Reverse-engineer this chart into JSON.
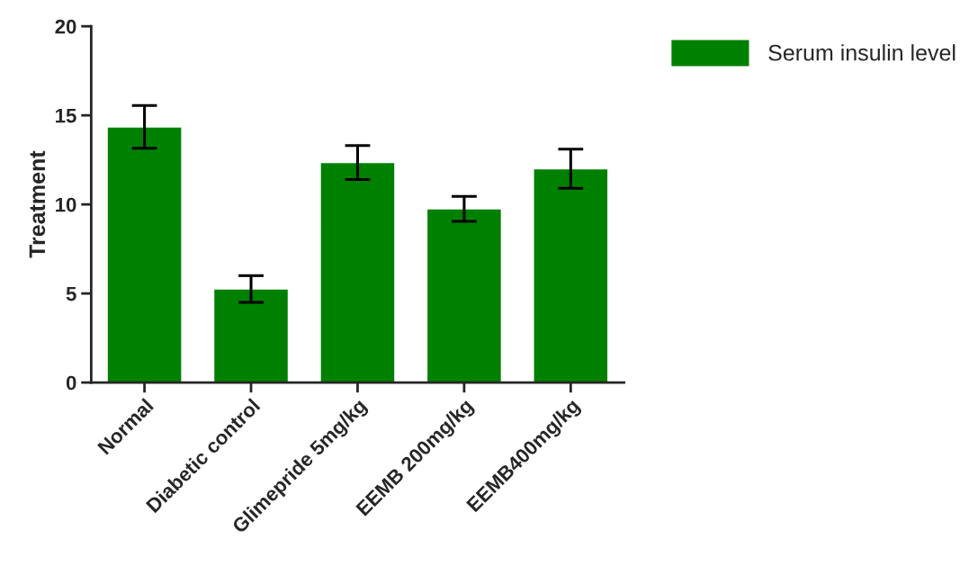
{
  "chart_data": {
    "type": "bar",
    "ylabel": "Treatment",
    "categories": [
      "Normal",
      "Diabetic control",
      "Glimepride 5mg/kg",
      "EEMB 200mg/kg",
      "EEMB400mg/kg"
    ],
    "series": [
      {
        "name": "Serum insulin level",
        "color": "#008000",
        "values": [
          14.35,
          5.25,
          12.35,
          9.75,
          12.0
        ],
        "errors": [
          1.2,
          0.75,
          0.95,
          0.7,
          1.1
        ]
      }
    ],
    "ylim": [
      0,
      20
    ],
    "yticks": [
      0,
      5,
      10,
      15,
      20
    ],
    "grid": false,
    "legend": "top right"
  }
}
